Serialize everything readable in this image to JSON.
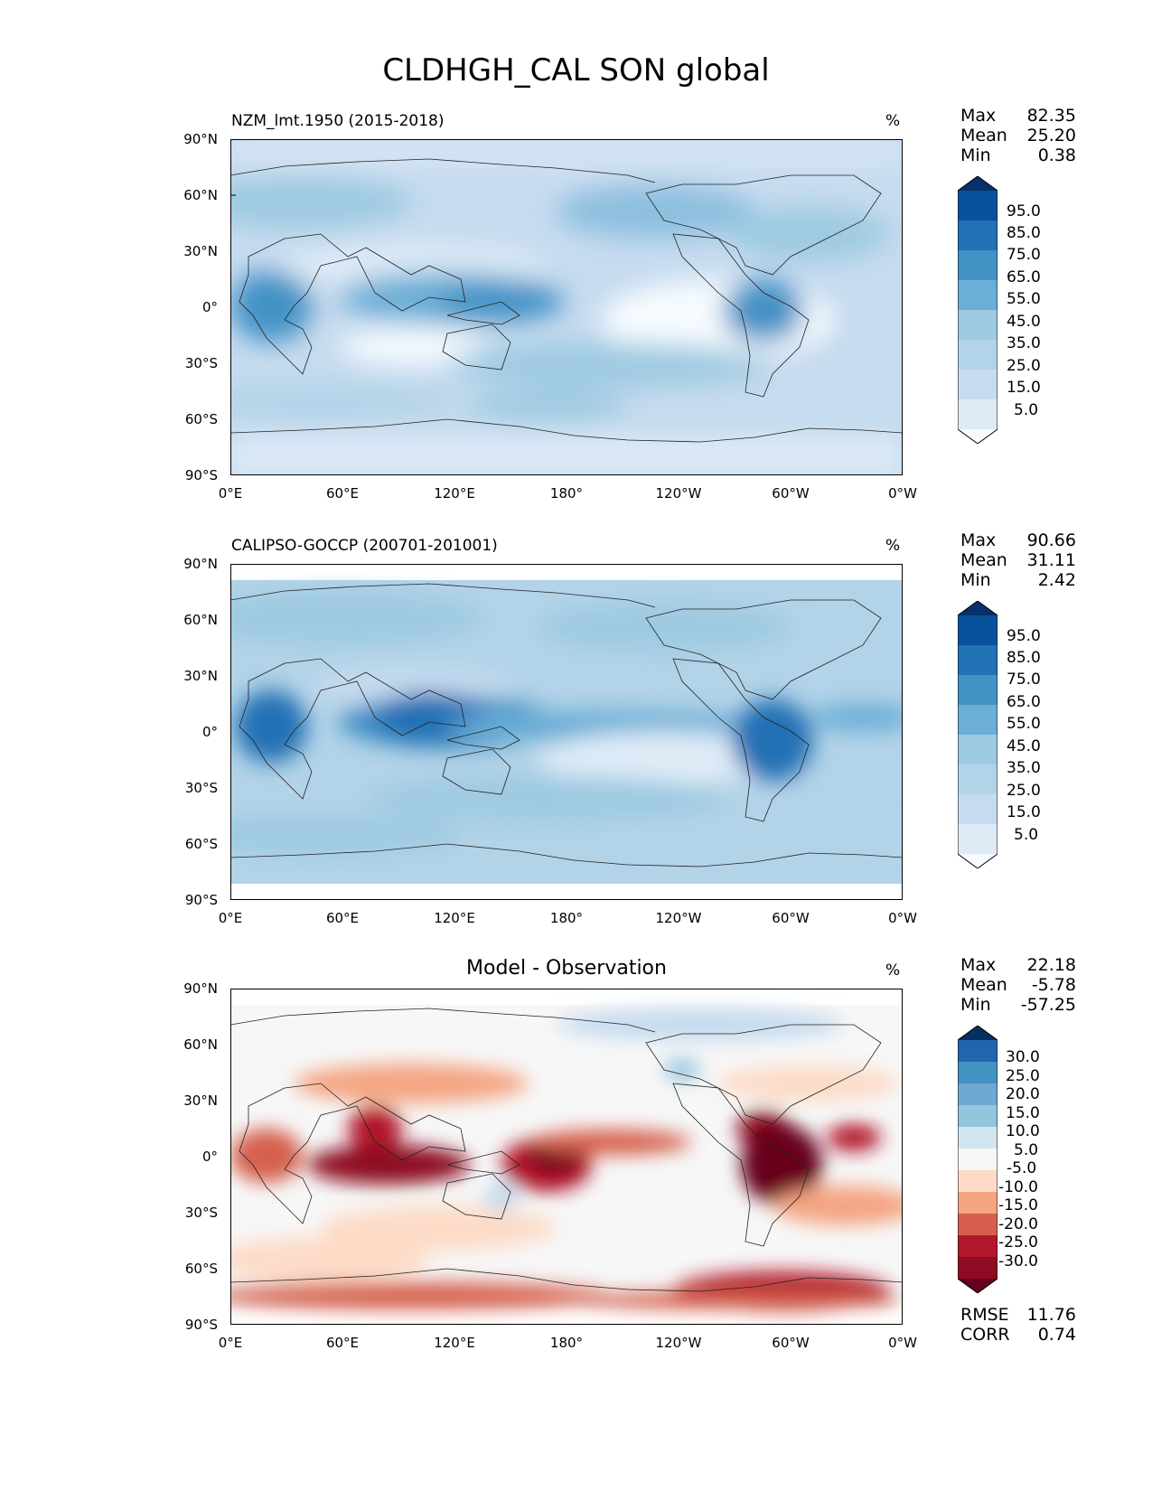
{
  "title": "CLDHGH_CAL SON global",
  "lat_labels": [
    "90°N",
    "60°N",
    "30°N",
    "0°",
    "30°S",
    "60°S",
    "90°S"
  ],
  "lon_labels": [
    "0°E",
    "60°E",
    "120°E",
    "180°",
    "120°W",
    "60°W",
    "0°W"
  ],
  "panels": [
    {
      "title": "NZM_lmt.1950 (2015-2018)",
      "unit": "%",
      "stats": {
        "max_label": "Max",
        "max": "82.35",
        "mean_label": "Mean",
        "mean": "25.20",
        "min_label": "Min",
        "min": "0.38"
      },
      "colorbar": {
        "ticks": [
          "95.0",
          "85.0",
          "75.0",
          "65.0",
          "55.0",
          "45.0",
          "35.0",
          "25.0",
          "15.0",
          "5.0"
        ],
        "colors": [
          "#08306b",
          "#08519c",
          "#2171b5",
          "#4292c6",
          "#6baed6",
          "#9ecae1",
          "#b3d3e8",
          "#c6dbef",
          "#deebf7",
          "#f7fbff"
        ]
      }
    },
    {
      "title": "CALIPSO-GOCCP (200701-201001)",
      "unit": "%",
      "stats": {
        "max_label": "Max",
        "max": "90.66",
        "mean_label": "Mean",
        "mean": "31.11",
        "min_label": "Min",
        "min": "2.42"
      },
      "colorbar": {
        "ticks": [
          "95.0",
          "85.0",
          "75.0",
          "65.0",
          "55.0",
          "45.0",
          "35.0",
          "25.0",
          "15.0",
          "5.0"
        ],
        "colors": [
          "#08306b",
          "#08519c",
          "#2171b5",
          "#4292c6",
          "#6baed6",
          "#9ecae1",
          "#b3d3e8",
          "#c6dbef",
          "#deebf7",
          "#f7fbff"
        ]
      }
    },
    {
      "title": "Model - Observation",
      "unit": "%",
      "stats": {
        "max_label": "Max",
        "max": "22.18",
        "mean_label": "Mean",
        "mean": "-5.78",
        "min_label": "Min",
        "min": "-57.25"
      },
      "extra": {
        "rmse_label": "RMSE",
        "rmse": "11.76",
        "corr_label": "CORR",
        "corr": "0.74"
      },
      "colorbar": {
        "ticks": [
          "30.0",
          "25.0",
          "20.0",
          "15.0",
          "10.0",
          "5.0",
          "-5.0",
          "-10.0",
          "-15.0",
          "-20.0",
          "-25.0",
          "-30.0"
        ],
        "colors": [
          "#053061",
          "#2166ac",
          "#4393c3",
          "#6fa9d2",
          "#92c5de",
          "#d1e5f0",
          "#f7f7f7",
          "#fddbc7",
          "#f4a582",
          "#d6604d",
          "#b2182b",
          "#8f0b22",
          "#67001f"
        ]
      }
    }
  ]
}
